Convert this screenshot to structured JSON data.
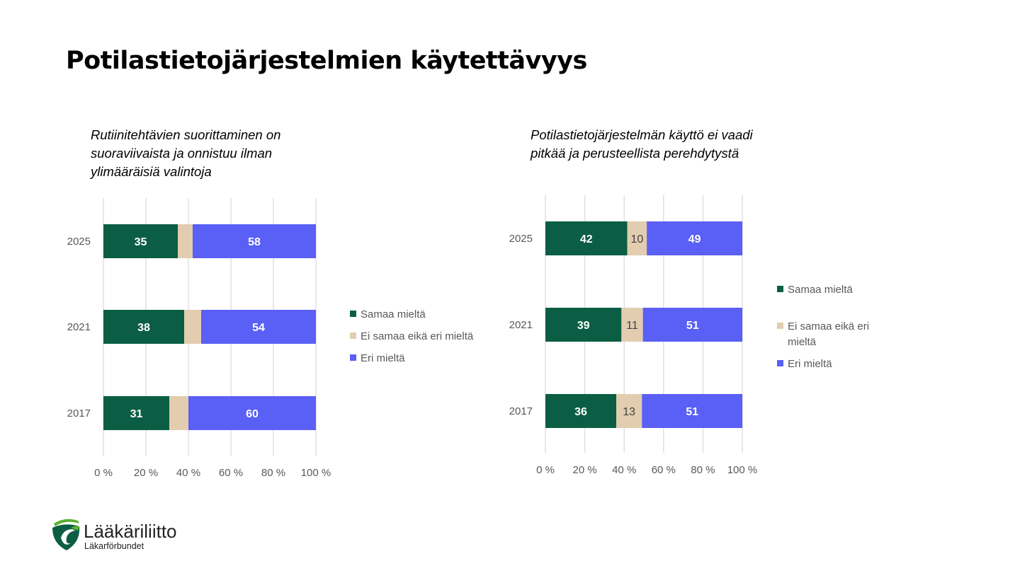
{
  "title": "Potilastietojärjestelmien käytettävyys",
  "logo": {
    "name": "Lääkäriliitto",
    "subname": "Läkarförbundet"
  },
  "chart_data": [
    {
      "type": "bar",
      "orientation": "horizontal",
      "stacked": "percent",
      "title": "Rutiinitehtävien suorittaminen on suoraviivaista ja onnistuu ilman ylimääräisiä valintoja",
      "title_lines": [
        "Rutiinitehtävien suorittaminen on",
        "suoraviivaista ja onnistuu ilman",
        "ylimääräisiä valintoja"
      ],
      "categories": [
        "2025",
        "2021",
        "2017"
      ],
      "series": [
        {
          "name": "Samaa mieltä",
          "color": "#0b5e44",
          "values": [
            35,
            38,
            31
          ],
          "labels_shown": true
        },
        {
          "name": "Ei samaa eikä eri mieltä",
          "color": "#e2cdb0",
          "values": [
            7,
            8,
            9
          ],
          "labels_shown": false
        },
        {
          "name": "Eri mieltä",
          "color": "#5a5ff5",
          "values": [
            58,
            54,
            60
          ],
          "labels_shown": true
        }
      ],
      "xticks": [
        "0 %",
        "20 %",
        "40 %",
        "60 %",
        "80 %",
        "100 %"
      ],
      "xlim": [
        0,
        100
      ],
      "grid": true,
      "legend": "right",
      "legend_lines": [
        [
          "Samaa mieltä"
        ],
        [
          "Ei samaa eikä eri mieltä"
        ],
        [
          "Eri mieltä"
        ]
      ]
    },
    {
      "type": "bar",
      "orientation": "horizontal",
      "stacked": "percent",
      "title": "Potilastietojärjestelmän käyttö ei vaadi pitkää ja perusteellista perehdytystä",
      "title_lines": [
        "Potilastietojärjestelmän käyttö ei vaadi",
        "pitkää ja perusteellista perehdytystä"
      ],
      "categories": [
        "2025",
        "2021",
        "2017"
      ],
      "series": [
        {
          "name": "Samaa mieltä",
          "color": "#0b5e44",
          "values": [
            42,
            39,
            36
          ],
          "labels_shown": true
        },
        {
          "name": "Ei samaa eikä eri mieltä",
          "color": "#e2cdb0",
          "values": [
            10,
            11,
            13
          ],
          "labels_shown": true
        },
        {
          "name": "Eri mieltä",
          "color": "#5a5ff5",
          "values": [
            49,
            51,
            51
          ],
          "labels_shown": true
        }
      ],
      "xticks": [
        "0 %",
        "20 %",
        "40 %",
        "60 %",
        "80 %",
        "100 %"
      ],
      "xlim": [
        0,
        100
      ],
      "grid": true,
      "legend": "right",
      "legend_lines": [
        [
          "Samaa mieltä"
        ],
        [
          "Ei samaa eikä eri",
          "mieltä"
        ],
        [
          "Eri mieltä"
        ]
      ]
    }
  ]
}
